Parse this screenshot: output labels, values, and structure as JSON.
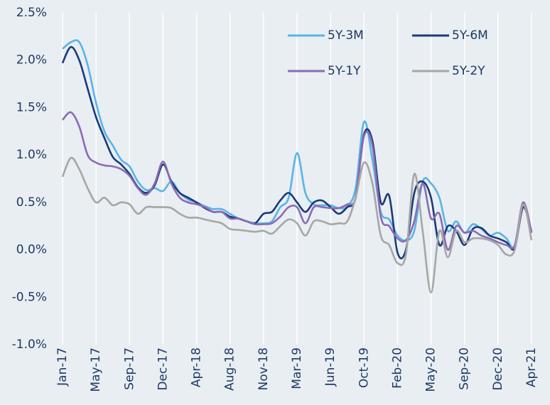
{
  "chart_data": {
    "type": "line",
    "categories": [
      "Jan-17",
      null,
      null,
      null,
      "May-17",
      null,
      null,
      null,
      "Sep-17",
      null,
      null,
      null,
      "Dec-17",
      null,
      null,
      null,
      "Apr-18",
      null,
      null,
      null,
      "Aug-18",
      null,
      null,
      null,
      "Nov-18",
      null,
      null,
      null,
      "Mar-19",
      null,
      null,
      null,
      "Jun-19",
      null,
      null,
      null,
      "Oct-19",
      null,
      null,
      null,
      "Feb-20",
      null,
      null,
      null,
      "May-20",
      null,
      null,
      null,
      "Sep-20",
      null,
      null,
      null,
      "Dec-20",
      null,
      null,
      null,
      "Apr-21"
    ],
    "series": [
      {
        "name": "5Y-3M",
        "color": "#5ab4e5",
        "values": [
          2.12,
          2.19,
          2.19,
          1.95,
          1.55,
          1.25,
          1.1,
          0.95,
          0.88,
          0.72,
          0.63,
          0.65,
          0.62,
          0.72,
          0.6,
          0.53,
          0.5,
          0.46,
          0.43,
          0.43,
          0.38,
          0.33,
          0.3,
          0.28,
          0.28,
          0.3,
          0.45,
          0.55,
          1.02,
          0.6,
          0.48,
          0.47,
          0.47,
          0.44,
          0.46,
          0.65,
          1.35,
          0.95,
          0.4,
          0.32,
          0.15,
          0.1,
          0.2,
          0.72,
          0.7,
          0.55,
          0.2,
          0.3,
          0.18,
          0.27,
          0.22,
          0.15,
          0.18,
          0.12,
          0.03,
          0.45,
          0.2
        ]
      },
      {
        "name": "5Y-6M",
        "color": "#1b3a78",
        "values": [
          1.97,
          2.14,
          2.0,
          1.7,
          1.4,
          1.18,
          0.98,
          0.9,
          0.8,
          0.66,
          0.6,
          0.68,
          0.9,
          0.72,
          0.6,
          0.55,
          0.5,
          0.44,
          0.4,
          0.4,
          0.35,
          0.33,
          0.3,
          0.28,
          0.38,
          0.4,
          0.52,
          0.6,
          0.5,
          0.4,
          0.5,
          0.52,
          0.45,
          0.38,
          0.45,
          0.55,
          1.22,
          1.15,
          0.5,
          0.57,
          -0.03,
          0.0,
          0.6,
          0.72,
          0.55,
          0.05,
          0.25,
          0.2,
          0.05,
          0.22,
          0.23,
          0.15,
          0.12,
          0.08,
          0.02,
          0.45,
          0.18
        ]
      },
      {
        "name": "5Y-1Y",
        "color": "#8b6bb5",
        "values": [
          1.37,
          1.45,
          1.3,
          1.0,
          0.92,
          0.89,
          0.88,
          0.85,
          0.78,
          0.65,
          0.58,
          0.7,
          0.93,
          0.7,
          0.55,
          0.5,
          0.48,
          0.45,
          0.4,
          0.4,
          0.33,
          0.33,
          0.3,
          0.27,
          0.27,
          0.28,
          0.35,
          0.45,
          0.45,
          0.28,
          0.45,
          0.45,
          0.44,
          0.44,
          0.48,
          0.55,
          1.2,
          1.1,
          0.35,
          0.25,
          0.12,
          0.1,
          0.3,
          0.7,
          0.33,
          0.38,
          0.0,
          0.25,
          0.18,
          0.2,
          0.15,
          0.12,
          0.08,
          0.05,
          0.05,
          0.5,
          0.18
        ]
      },
      {
        "name": "5Y-2Y",
        "color": "#a6a6a6",
        "values": [
          0.77,
          0.97,
          0.85,
          0.65,
          0.5,
          0.55,
          0.47,
          0.5,
          0.48,
          0.38,
          0.45,
          0.45,
          0.45,
          0.44,
          0.38,
          0.34,
          0.34,
          0.32,
          0.3,
          0.28,
          0.22,
          0.21,
          0.2,
          0.19,
          0.2,
          0.17,
          0.25,
          0.32,
          0.28,
          0.15,
          0.3,
          0.3,
          0.27,
          0.28,
          0.3,
          0.55,
          0.92,
          0.7,
          0.15,
          0.05,
          -0.14,
          -0.05,
          0.8,
          0.2,
          -0.45,
          0.2,
          -0.08,
          0.2,
          0.08,
          0.12,
          0.12,
          0.1,
          0.05,
          -0.05,
          0.0,
          0.48,
          0.1
        ]
      }
    ],
    "ylim": [
      -1.0,
      2.5
    ],
    "yticks": [
      {
        "value": -1.0,
        "label": "-1.0%"
      },
      {
        "value": -0.5,
        "label": "-0.5%"
      },
      {
        "value": 0,
        "label": "0.0%"
      },
      {
        "value": 0.5,
        "label": "0.5%"
      },
      {
        "value": 1.0,
        "label": "1.0%"
      },
      {
        "value": 1.5,
        "label": "1.5%"
      },
      {
        "value": 2.0,
        "label": "2.0%"
      },
      {
        "value": 2.5,
        "label": "2.5%"
      }
    ],
    "grid": "x",
    "legend": "top-right"
  }
}
